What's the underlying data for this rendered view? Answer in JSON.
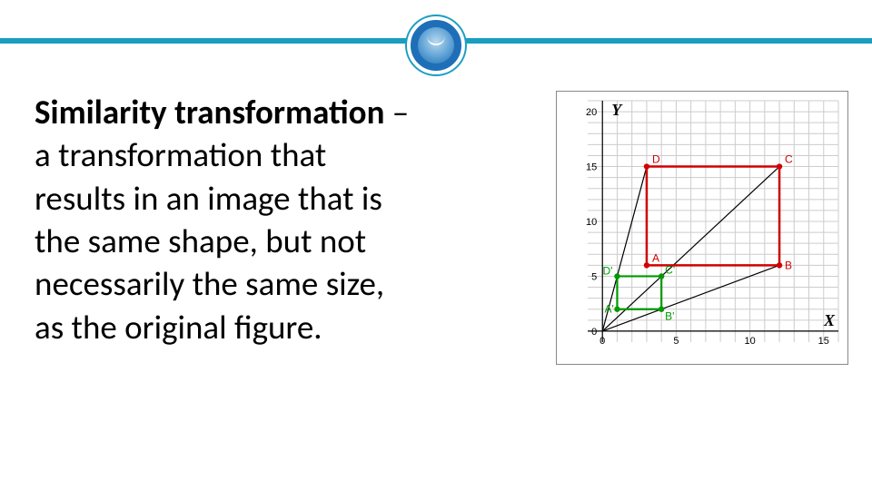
{
  "definition": {
    "term": "Similarity transformation",
    "dash": " – ",
    "body_line1": "a transformation that",
    "body_line2": "results in an image that is",
    "body_line3": "the same shape, but not",
    "body_line4": "necessarily the same size,",
    "body_line5": "as the original figure."
  },
  "chart": {
    "x_axis_label": "X",
    "y_axis_label": "Y",
    "xlim": [
      -1,
      16
    ],
    "ylim": [
      -1,
      21
    ],
    "xticks": [
      0,
      5,
      10,
      15
    ],
    "yticks": [
      0,
      5,
      10,
      15,
      20
    ],
    "grid_color": "#cccccc",
    "axis_color": "#000000",
    "big_square": {
      "color": "#d00000",
      "points": {
        "A": [
          3,
          6
        ],
        "B": [
          12,
          6
        ],
        "C": [
          12,
          15
        ],
        "D": [
          3,
          15
        ]
      },
      "labels": {
        "A": "A",
        "B": "B",
        "C": "C",
        "D": "D"
      }
    },
    "small_square": {
      "color": "#009900",
      "points": {
        "Ap": [
          1,
          2
        ],
        "Bp": [
          4,
          2
        ],
        "Cp": [
          4,
          5
        ],
        "Dp": [
          1,
          5
        ]
      },
      "labels": {
        "Ap": "A'",
        "Bp": "B'",
        "Cp": "C'",
        "Dp": "D'"
      }
    },
    "projection_lines": [
      [
        [
          0,
          0
        ],
        [
          3,
          15
        ]
      ],
      [
        [
          0,
          0
        ],
        [
          12,
          15
        ]
      ],
      [
        [
          0,
          0
        ],
        [
          12,
          6
        ]
      ]
    ],
    "point_radius": 3.2
  }
}
